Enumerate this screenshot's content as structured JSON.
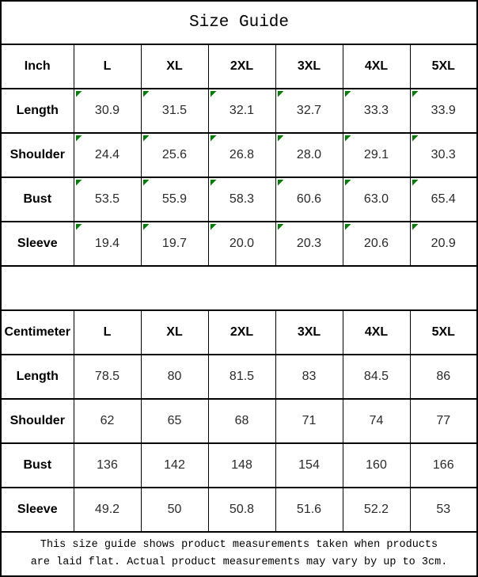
{
  "title": "Size Guide",
  "colors": {
    "background": "#ffffff",
    "border": "#000000",
    "text": "#000000",
    "marker_green": "#008000"
  },
  "footer_note": "This size guide shows product measurements taken when products\nare laid flat. Actual product measurements may vary by up to 3cm.",
  "chart_data": [
    {
      "type": "table",
      "title": "Size Guide",
      "unit_label": "Inch",
      "columns": [
        "L",
        "XL",
        "2XL",
        "3XL",
        "4XL",
        "5XL"
      ],
      "rows": [
        {
          "label": "Length",
          "values": [
            "30.9",
            "31.5",
            "32.1",
            "32.7",
            "33.3",
            "33.9"
          ]
        },
        {
          "label": "Shoulder",
          "values": [
            "24.4",
            "25.6",
            "26.8",
            "28.0",
            "29.1",
            "30.3"
          ]
        },
        {
          "label": "Bust",
          "values": [
            "53.5",
            "55.9",
            "58.3",
            "60.6",
            "63.0",
            "65.4"
          ]
        },
        {
          "label": "Sleeve",
          "values": [
            "19.4",
            "19.7",
            "20.0",
            "20.3",
            "20.6",
            "20.9"
          ]
        }
      ],
      "cell_marker": "green-triangle-top-left"
    },
    {
      "type": "table",
      "unit_label": "Centimeter",
      "columns": [
        "L",
        "XL",
        "2XL",
        "3XL",
        "4XL",
        "5XL"
      ],
      "rows": [
        {
          "label": "Length",
          "values": [
            "78.5",
            "80",
            "81.5",
            "83",
            "84.5",
            "86"
          ]
        },
        {
          "label": "Shoulder",
          "values": [
            "62",
            "65",
            "68",
            "71",
            "74",
            "77"
          ]
        },
        {
          "label": "Bust",
          "values": [
            "136",
            "142",
            "148",
            "154",
            "160",
            "166"
          ]
        },
        {
          "label": "Sleeve",
          "values": [
            "49.2",
            "50",
            "50.8",
            "51.6",
            "52.2",
            "53"
          ]
        }
      ]
    }
  ]
}
